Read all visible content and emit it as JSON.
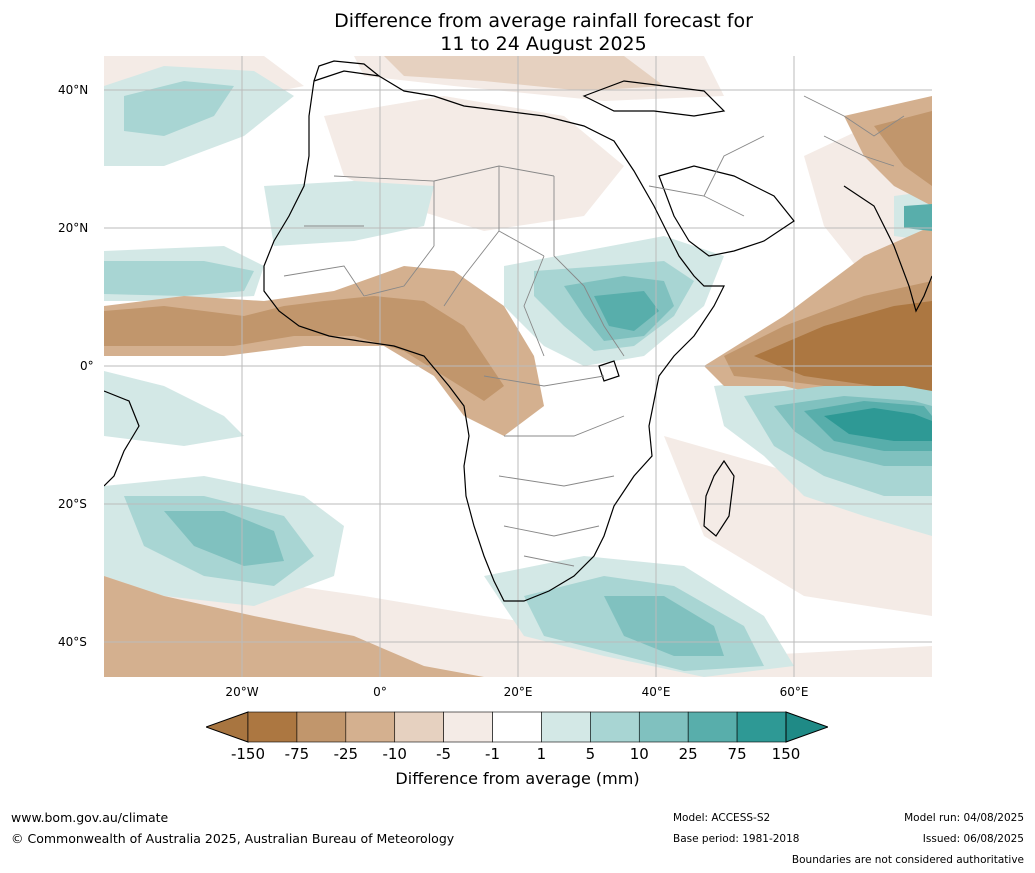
{
  "title_line1": "Difference from average rainfall forecast for",
  "title_line2": "11 to 24 August 2025",
  "map": {
    "lat_labels": [
      "40°N",
      "20°N",
      "0°",
      "20°S",
      "40°S"
    ],
    "lon_labels": [
      "20°W",
      "0°",
      "20°E",
      "40°E",
      "60°E"
    ],
    "colors": {
      "wet_extreme": "#2e9995",
      "dry_extreme": "#a87540"
    }
  },
  "colorbar": {
    "ticks": [
      "-150",
      "-75",
      "-25",
      "-10",
      "-5",
      "-1",
      "1",
      "5",
      "10",
      "25",
      "75",
      "150"
    ],
    "colors": [
      "#a87540",
      "#ac7741",
      "#c1966c",
      "#d4b08f",
      "#e6d1c0",
      "#f4ebe6",
      "#ffffff",
      "#d3e8e6",
      "#a8d5d3",
      "#80c1bf",
      "#58aeab",
      "#2e9995",
      "#1f8a86"
    ],
    "label": "Difference from average (mm)"
  },
  "footer": {
    "website": "www.bom.gov.au/climate",
    "copyright": "© Commonwealth of Australia 2025, Australian Bureau of Meteorology",
    "model": "Model: ACCESS-S2",
    "base_period": "Base period: 1981-2018",
    "model_run": "Model run: 04/08/2025",
    "issued": "Issued: 06/08/2025",
    "disclaimer": "Boundaries are not considered authoritative"
  }
}
